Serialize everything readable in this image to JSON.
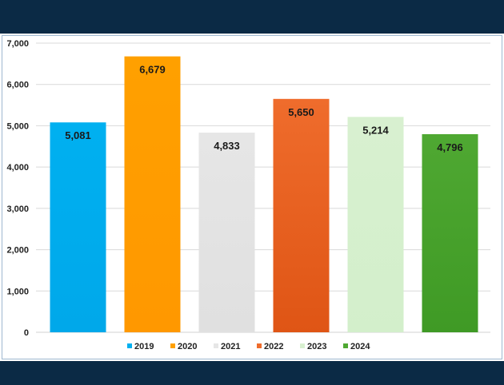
{
  "chart_data": {
    "type": "bar",
    "title": "",
    "xlabel": "",
    "ylabel": "",
    "ylim": [
      0,
      7000
    ],
    "yticks": [
      0,
      1000,
      2000,
      3000,
      4000,
      5000,
      6000,
      7000
    ],
    "ytick_labels": [
      "0",
      "1,000",
      "2,000",
      "3,000",
      "4,000",
      "5,000",
      "6,000",
      "7,000"
    ],
    "grid": true,
    "legend_position": "bottom",
    "categories": [
      "2019",
      "2020",
      "2021",
      "2022",
      "2023",
      "2024"
    ],
    "values": [
      5081,
      6679,
      4833,
      5650,
      5214,
      4796
    ],
    "data_labels": [
      "5,081",
      "6,679",
      "4,833",
      "5,650",
      "5,214",
      "4,796"
    ],
    "colors": [
      "#00b0f0",
      "#ffa000",
      "#e6e6e6",
      "#ef6c2c",
      "#d8f0d0",
      "#4fa832"
    ],
    "colors_dark": [
      "#00a8ea",
      "#ff9800",
      "#e0e0e0",
      "#df5515",
      "#d3efcb",
      "#3f9a25"
    ]
  }
}
